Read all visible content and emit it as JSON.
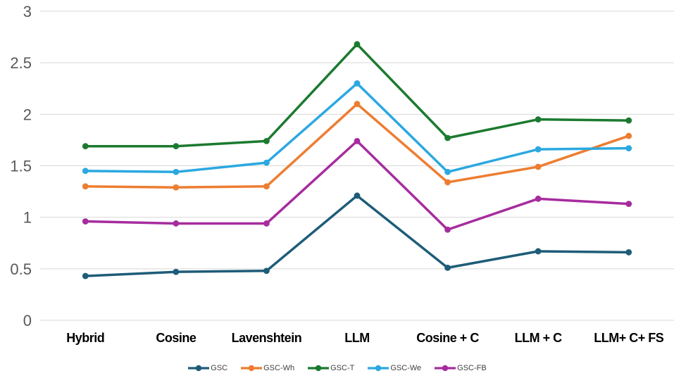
{
  "chart_data": {
    "type": "line",
    "title": "",
    "xlabel": "",
    "ylabel": "",
    "ylim": [
      0,
      3
    ],
    "grid": true,
    "legend_position": "bottom",
    "categories": [
      "Hybrid",
      "Cosine",
      "Lavenshtein",
      "LLM",
      "Cosine + C",
      "LLM + C",
      "LLM+ C+ FS"
    ],
    "y_ticks": [
      {
        "v": 0,
        "label": "0"
      },
      {
        "v": 0.5,
        "label": "0.5"
      },
      {
        "v": 1,
        "label": "1"
      },
      {
        "v": 1.5,
        "label": "1.5"
      },
      {
        "v": 2,
        "label": "2"
      },
      {
        "v": 2.5,
        "label": "2.5"
      },
      {
        "v": 3,
        "label": "3"
      }
    ],
    "series": [
      {
        "name": "GSC",
        "color": "#1E5C78",
        "values": [
          0.43,
          0.47,
          0.48,
          1.21,
          0.51,
          0.67,
          0.66
        ]
      },
      {
        "name": "GSC-Wh",
        "color": "#ED7D31",
        "values": [
          1.3,
          1.29,
          1.3,
          2.1,
          1.34,
          1.49,
          1.79
        ]
      },
      {
        "name": "GSC-T",
        "color": "#1B7A2F",
        "values": [
          1.69,
          1.69,
          1.74,
          2.68,
          1.77,
          1.95,
          1.94
        ]
      },
      {
        "name": "GSC-We",
        "color": "#2BA8E0",
        "values": [
          1.45,
          1.44,
          1.53,
          2.3,
          1.44,
          1.66,
          1.67
        ]
      },
      {
        "name": "GSC-FB",
        "color": "#A62C9E",
        "values": [
          0.96,
          0.94,
          0.94,
          1.74,
          0.88,
          1.18,
          1.13
        ]
      }
    ]
  },
  "styles": {
    "grid_color": "#D8D8D8",
    "tick_color": "#595959",
    "category_color": "#000000",
    "legend_text_color": "#404040",
    "background": "#FFFFFF"
  }
}
